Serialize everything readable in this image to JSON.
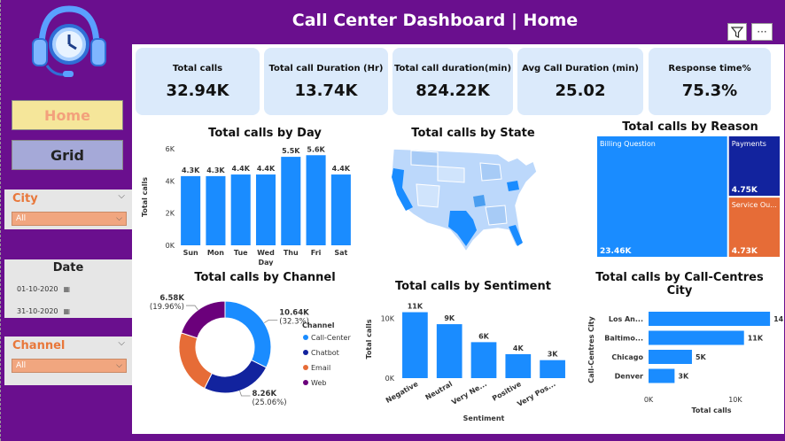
{
  "header": {
    "title": "Call Center Dashboard | Home"
  },
  "nav": {
    "home_label": "Home",
    "grid_label": "Grid"
  },
  "slicers": {
    "city": {
      "title": "City",
      "value": "All"
    },
    "date": {
      "title": "Date",
      "start": "01-10-2020",
      "end": "31-10-2020"
    },
    "channel": {
      "title": "Channel",
      "value": "All"
    }
  },
  "icons": [
    "headset-clock-icon",
    "filter-icon",
    "more-options-icon",
    "calendar-icon",
    "chevron-down-icon"
  ],
  "colors": {
    "background": "#6a0f8e",
    "kpi": "#dbeafb",
    "bar": "#1a8cff",
    "accent": "#e8773a"
  },
  "kpis": [
    {
      "label": "Total calls",
      "value": "32.94K"
    },
    {
      "label": "Total call Duration (Hr)",
      "value": "13.74K"
    },
    {
      "label": "Total call duration(min)",
      "value": "824.22K"
    },
    {
      "label": "Avg Call Duration (min)",
      "value": "25.02"
    },
    {
      "label": "Response time%",
      "value": "75.3%"
    }
  ],
  "chart_data": [
    {
      "id": "by_day",
      "type": "bar",
      "title": "Total calls by Day",
      "xlabel": "Day",
      "ylabel": "Total calls",
      "categories": [
        "Sun",
        "Mon",
        "Tue",
        "Wed",
        "Thu",
        "Fri",
        "Sat"
      ],
      "values": [
        4300,
        4300,
        4400,
        4400,
        5500,
        5600,
        4400
      ],
      "labels": [
        "4.3K",
        "4.3K",
        "4.4K",
        "4.4K",
        "5.5K",
        "5.6K",
        "4.4K"
      ],
      "yticks": [
        "0K",
        "2K",
        "4K",
        "6K"
      ],
      "ylim": [
        0,
        6000
      ],
      "color": "#1a8cff"
    },
    {
      "id": "by_state",
      "type": "map",
      "title": "Total calls by State"
    },
    {
      "id": "by_reason",
      "type": "treemap",
      "title": "Total calls by Reason",
      "items": [
        {
          "name": "Billing Question",
          "value_label": "23.46K",
          "value": 23460,
          "color": "#1a8cff"
        },
        {
          "name": "Payments",
          "value_label": "4.75K",
          "value": 4750,
          "color": "#12239e"
        },
        {
          "name": "Service Ou...",
          "value_label": "4.73K",
          "value": 4730,
          "color": "#e66c37"
        }
      ]
    },
    {
      "id": "by_channel",
      "type": "pie",
      "title": "Total calls by Channel",
      "legend_title": "Channel",
      "legend": "right",
      "slices": [
        {
          "name": "Call-Center",
          "value": 10640,
          "label": "10.64K",
          "pct": "(32.3%)",
          "color": "#1a8cff"
        },
        {
          "name": "Chatbot",
          "value": 8260,
          "label": "8.26K",
          "pct": "(25.06%)",
          "color": "#12239e"
        },
        {
          "name": "Email",
          "value": 7460,
          "label": "",
          "pct": "",
          "color": "#e66c37"
        },
        {
          "name": "Web",
          "value": 6580,
          "label": "6.58K",
          "pct": "(19.96%)",
          "color": "#6b007b"
        }
      ]
    },
    {
      "id": "by_sentiment",
      "type": "bar",
      "title": "Total calls by Sentiment",
      "xlabel": "Sentiment",
      "ylabel": "Total calls",
      "categories": [
        "Negative",
        "Neutral",
        "Very Ne...",
        "Positive",
        "Very Pos..."
      ],
      "values": [
        11000,
        9000,
        6000,
        4000,
        3000
      ],
      "labels": [
        "11K",
        "9K",
        "6K",
        "4K",
        "3K"
      ],
      "yticks": [
        "0K",
        "10K"
      ],
      "ylim": [
        0,
        13000
      ],
      "color": "#1a8cff"
    },
    {
      "id": "by_city",
      "type": "bar",
      "orientation": "horizontal",
      "title": "Total calls by Call-Centres City",
      "xlabel": "Total calls",
      "ylabel": "Call-Centres City",
      "categories": [
        "Los An...",
        "Baltimo...",
        "Chicago",
        "Denver"
      ],
      "values": [
        14000,
        11000,
        5000,
        3000
      ],
      "labels": [
        "14K",
        "11K",
        "5K",
        "3K"
      ],
      "xticks": [
        "0K",
        "10K"
      ],
      "xlim": [
        0,
        14500
      ],
      "color": "#1a8cff"
    }
  ]
}
